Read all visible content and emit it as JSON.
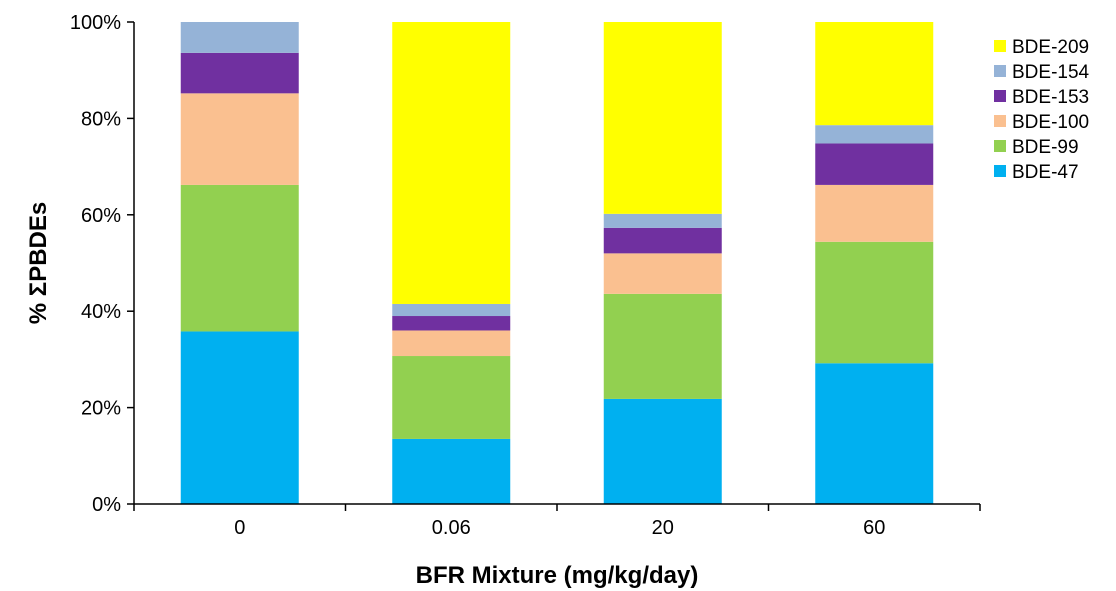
{
  "chart_data": {
    "type": "bar",
    "stacked": true,
    "title": "",
    "xlabel": "BFR Mixture (mg/kg/day)",
    "ylabel": "% ΣPBDEs",
    "ylim": [
      0,
      100
    ],
    "yticks": [
      "0%",
      "20%",
      "40%",
      "60%",
      "80%",
      "100%"
    ],
    "categories": [
      "0",
      "0.06",
      "20",
      "60"
    ],
    "legend_position": "right",
    "grid": false,
    "series": [
      {
        "name": "BDE-47",
        "color": "#00b0f0",
        "values": [
          35.8,
          13.5,
          21.8,
          29.2
        ]
      },
      {
        "name": "BDE-99",
        "color": "#92d050",
        "values": [
          30.4,
          17.2,
          21.8,
          25.2
        ]
      },
      {
        "name": "BDE-100",
        "color": "#fac090",
        "values": [
          19.0,
          5.3,
          8.4,
          11.8
        ]
      },
      {
        "name": "BDE-153",
        "color": "#7030a0",
        "values": [
          8.4,
          3.0,
          5.3,
          8.6
        ]
      },
      {
        "name": "BDE-154",
        "color": "#95b3d7",
        "values": [
          6.4,
          2.5,
          2.9,
          3.8
        ]
      },
      {
        "name": "BDE-209",
        "color": "#ffff00",
        "values": [
          0.0,
          58.5,
          39.8,
          21.4
        ]
      }
    ]
  }
}
